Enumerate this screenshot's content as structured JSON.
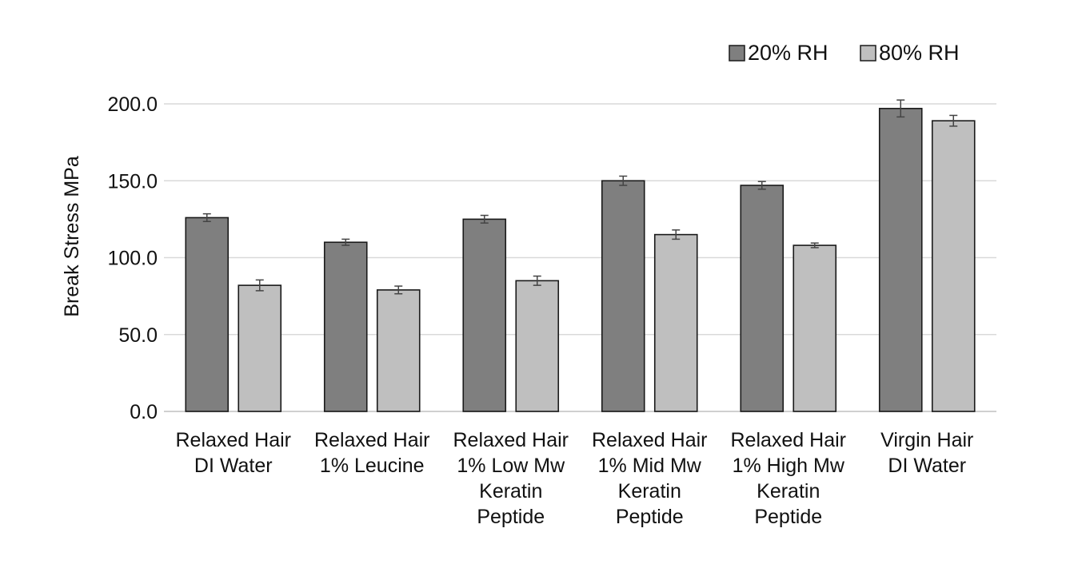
{
  "chart_data": {
    "type": "bar",
    "ylabel": "Break Stress MPa",
    "xlabel": "",
    "ylim": [
      0,
      200
    ],
    "y_ticks": [
      "0.0",
      "50.0",
      "100.0",
      "150.0",
      "200.0"
    ],
    "grid": true,
    "legend_position": "top-right",
    "categories": [
      [
        "Relaxed Hair",
        "DI Water"
      ],
      [
        "Relaxed Hair",
        "1% Leucine"
      ],
      [
        "Relaxed Hair",
        "1% Low Mw",
        "Keratin",
        "Peptide"
      ],
      [
        "Relaxed Hair",
        "1% Mid Mw",
        "Keratin",
        "Peptide"
      ],
      [
        "Relaxed Hair",
        "1% High Mw",
        "Keratin",
        "Peptide"
      ],
      [
        "Virgin Hair",
        "DI Water"
      ]
    ],
    "series": [
      {
        "name": "20% RH",
        "color": "#7f7f7f",
        "values": [
          126,
          110,
          125,
          150,
          147,
          197
        ],
        "errors": [
          2.5,
          2,
          2.5,
          3,
          2.5,
          5.5
        ]
      },
      {
        "name": "80% RH",
        "color": "#bfbfbf",
        "values": [
          82,
          79,
          85,
          115,
          108,
          189
        ],
        "errors": [
          3.5,
          2.5,
          3,
          3,
          1.5,
          3.5
        ]
      }
    ]
  }
}
